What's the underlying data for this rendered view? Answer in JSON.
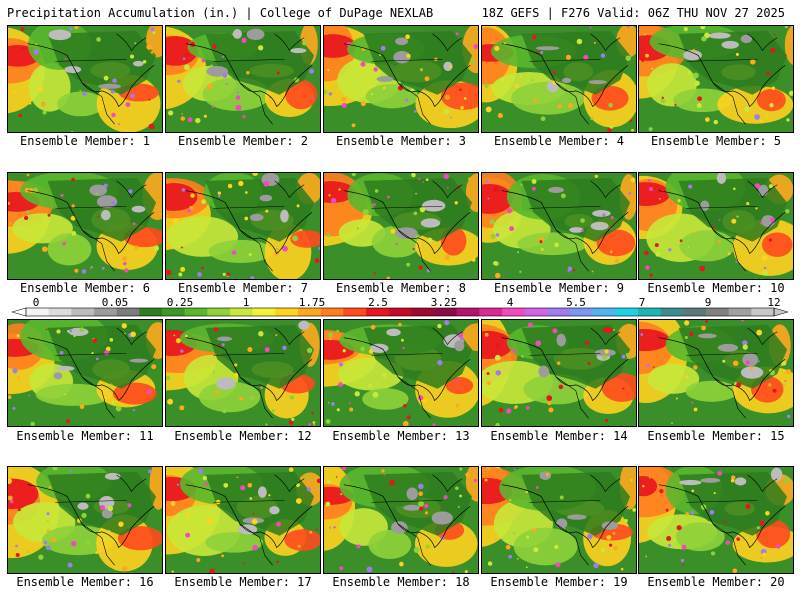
{
  "header": {
    "left_title": "Precipitation Accumulation (in.) | College of DuPage NEXLAB",
    "right_title": "18Z GEFS | F276 Valid: 06Z THU NOV 27 2025"
  },
  "panels": [
    {
      "label": "Ensemble Member: 1"
    },
    {
      "label": "Ensemble Member: 2"
    },
    {
      "label": "Ensemble Member: 3"
    },
    {
      "label": "Ensemble Member: 4"
    },
    {
      "label": "Ensemble Member: 5"
    },
    {
      "label": "Ensemble Member: 6"
    },
    {
      "label": "Ensemble Member: 7"
    },
    {
      "label": "Ensemble Member: 8"
    },
    {
      "label": "Ensemble Member: 9"
    },
    {
      "label": "Ensemble Member: 10"
    },
    {
      "label": "Ensemble Member: 11"
    },
    {
      "label": "Ensemble Member: 12"
    },
    {
      "label": "Ensemble Member: 13"
    },
    {
      "label": "Ensemble Member: 14"
    },
    {
      "label": "Ensemble Member: 15"
    },
    {
      "label": "Ensemble Member: 16"
    },
    {
      "label": "Ensemble Member: 17"
    },
    {
      "label": "Ensemble Member: 18"
    },
    {
      "label": "Ensemble Member: 19"
    },
    {
      "label": "Ensemble Member: 20"
    }
  ],
  "colorbar": {
    "tick_labels": [
      "0",
      "0.05",
      "0.25",
      "1",
      "1.75",
      "2.5",
      "3.25",
      "4",
      "5.5",
      "7",
      "9",
      "12"
    ],
    "colors": [
      "#f4f4f4",
      "#dcdcdc",
      "#bcbcbc",
      "#9c9c9c",
      "#7c7c7c",
      "#2e7d1e",
      "#3c9a24",
      "#5ab82c",
      "#8fd13a",
      "#c8e83a",
      "#f2f23a",
      "#ffd21e",
      "#ffa81e",
      "#ff7e1e",
      "#ff4a1e",
      "#e8141e",
      "#c80a28",
      "#a00a32",
      "#8c0a46",
      "#b4146e",
      "#dc2896",
      "#f04abe",
      "#d264e6",
      "#a07cf0",
      "#7c96f0",
      "#50b4f0",
      "#1ed2e6",
      "#1eb4b4",
      "#3c8c8c",
      "#5a7a7a",
      "#808080",
      "#a0a0a0",
      "#c8c8c8"
    ]
  },
  "palette": {
    "ocean_base": "#3a8f28",
    "land_base": "#2e7d1e"
  }
}
